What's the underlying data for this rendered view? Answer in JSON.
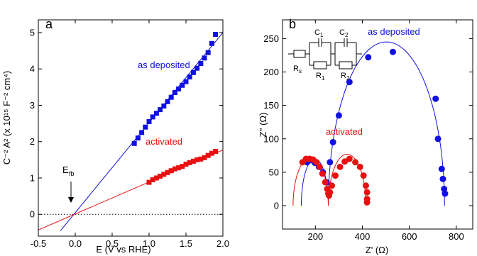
{
  "colors": {
    "blue": "#1010e0",
    "red": "#e81010",
    "axis": "#000000"
  },
  "chart_data": [
    {
      "type": "scatter",
      "panel_label": "a",
      "xlabel": "E (V vs RHE)",
      "ylabel": "C⁻² A² (x 10¹⁵ F⁻² cm⁴)",
      "xlim": [
        -0.5,
        2.0
      ],
      "ylim": [
        -0.6,
        5.35
      ],
      "xticks": [
        -0.5,
        0.0,
        0.5,
        1.0,
        1.5,
        2.0
      ],
      "xtick_labels": [
        "-0.5",
        "0.0",
        "0.5",
        "1.0",
        "1.5",
        "2.0"
      ],
      "yticks": [
        0,
        1,
        2,
        3,
        4,
        5
      ],
      "ytick_labels": [
        "0",
        "1",
        "2",
        "3",
        "4",
        "5"
      ],
      "zero_reference_line": true,
      "annotation": {
        "main": "E",
        "sub": "fb",
        "x": 0.0,
        "y": 0.0
      },
      "series": [
        {
          "name": "as deposited",
          "color": "#1010e0",
          "marker": "square",
          "x": [
            0.8,
            0.85,
            0.9,
            0.95,
            1.0,
            1.05,
            1.1,
            1.15,
            1.2,
            1.25,
            1.3,
            1.35,
            1.4,
            1.45,
            1.5,
            1.55,
            1.6,
            1.65,
            1.7,
            1.75,
            1.8,
            1.85,
            1.9
          ],
          "y": [
            1.95,
            2.1,
            2.25,
            2.4,
            2.55,
            2.68,
            2.78,
            2.88,
            2.98,
            3.1,
            3.22,
            3.35,
            3.45,
            3.55,
            3.65,
            3.78,
            3.9,
            4.02,
            4.15,
            4.3,
            4.45,
            4.7,
            4.95
          ],
          "fit": {
            "x": [
              -0.2,
              2.0
            ],
            "y": [
              -0.45,
              5.0
            ]
          }
        },
        {
          "name": "activated",
          "color": "#e81010",
          "marker": "square",
          "x": [
            1.0,
            1.05,
            1.1,
            1.15,
            1.2,
            1.25,
            1.3,
            1.35,
            1.4,
            1.45,
            1.5,
            1.55,
            1.6,
            1.65,
            1.7,
            1.75,
            1.8,
            1.85,
            1.9
          ],
          "y": [
            0.88,
            0.95,
            1.0,
            1.05,
            1.1,
            1.15,
            1.2,
            1.25,
            1.28,
            1.32,
            1.38,
            1.42,
            1.46,
            1.5,
            1.52,
            1.56,
            1.62,
            1.68,
            1.73
          ],
          "fit": {
            "x": [
              -0.5,
              2.0
            ],
            "y": [
              -0.43,
              1.77
            ]
          }
        }
      ]
    },
    {
      "type": "scatter",
      "panel_label": "b",
      "xlabel": "Z' (Ω)",
      "ylabel": "Z'' (Ω)",
      "xlim": [
        60,
        870
      ],
      "ylim": [
        -35,
        278
      ],
      "xticks": [
        200,
        400,
        600,
        800
      ],
      "xtick_labels": [
        "200",
        "400",
        "600",
        "800"
      ],
      "yticks": [
        0,
        50,
        100,
        150,
        200,
        250
      ],
      "ytick_labels": [
        "0",
        "50",
        "100",
        "150",
        "200",
        "250"
      ],
      "circuit": {
        "labels": {
          "C1": "C",
          "C1_sub": "1",
          "C2": "C",
          "C2_sub": "2",
          "Rs": "R",
          "Rs_sub": "s",
          "R1": "R",
          "R1_sub": "1",
          "R2": "R",
          "R2_sub": "2"
        }
      },
      "series": [
        {
          "name": "as deposited",
          "color": "#1010e0",
          "marker": "circle",
          "x": [
            165,
            180,
            198,
            215,
            232,
            248,
            262,
            275,
            300,
            345,
            425,
            530,
            712,
            722,
            738,
            743,
            748,
            752
          ],
          "y": [
            65,
            68,
            64,
            58,
            50,
            35,
            65,
            95,
            135,
            185,
            222,
            230,
            160,
            100,
            55,
            40,
            25,
            18
          ],
          "fit_type": "two_arcs",
          "fit_arcs": [
            {
              "x0": 140,
              "x1": 255,
              "ymax": 70
            },
            {
              "x0": 255,
              "x1": 750,
              "ymax": 245
            }
          ]
        },
        {
          "name": "activated",
          "color": "#e81010",
          "marker": "circle",
          "x": [
            145,
            160,
            175,
            190,
            205,
            218,
            230,
            242,
            250,
            255,
            258,
            262,
            270,
            285,
            305,
            325,
            345,
            370,
            390,
            405,
            415,
            420,
            420,
            420
          ],
          "y": [
            65,
            70,
            70,
            69,
            65,
            58,
            48,
            35,
            25,
            18,
            15,
            20,
            30,
            45,
            58,
            66,
            70,
            65,
            58,
            45,
            30,
            20,
            10,
            5
          ],
          "fit_type": "two_arcs",
          "fit_arcs": [
            {
              "x0": 105,
              "x1": 255,
              "ymax": 72
            },
            {
              "x0": 255,
              "x1": 415,
              "ymax": 77
            }
          ]
        }
      ]
    }
  ]
}
